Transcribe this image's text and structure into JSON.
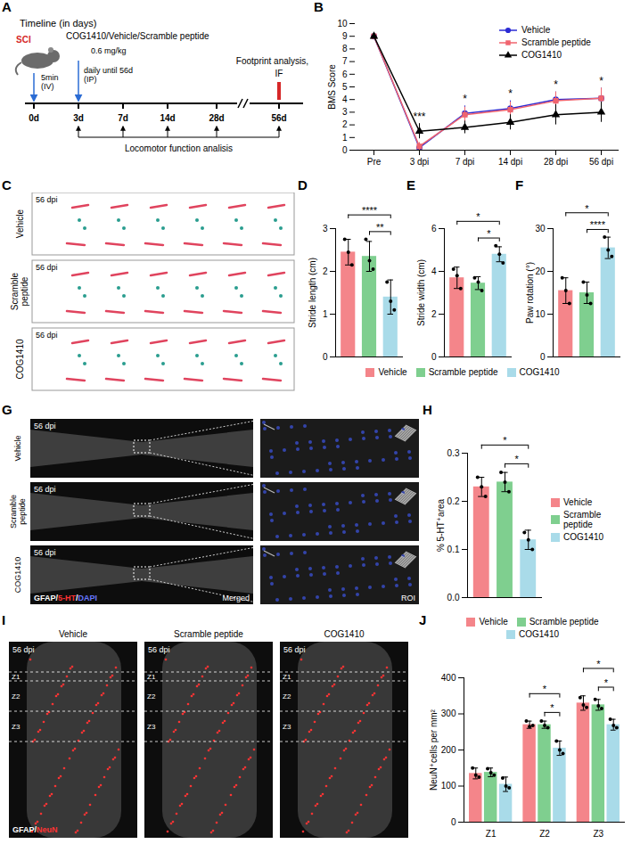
{
  "timeline": {
    "panel": "A",
    "title": "Timeline (in days)",
    "injury": "SCI",
    "treatment": "COG1410/Vehicle/Scramble peptide",
    "dose": "0.6 mg/kg",
    "first_dose": [
      "5min",
      "(IV)"
    ],
    "daily_dose": [
      "daily until 56d",
      "(IP)"
    ],
    "endpoint": [
      "Footprint analysis,",
      "IF"
    ],
    "days": [
      "0d",
      "3d",
      "7d",
      "14d",
      "28d",
      "56d"
    ],
    "assessment": "Locomotor function analisis"
  },
  "footprints": {
    "panel": "C",
    "tag": "56 dpi",
    "rows": [
      "Vehicle",
      "Scramble peptide",
      "COG1410"
    ]
  },
  "serotonin_images": {
    "panel": "G",
    "tag": "56 dpi",
    "rows": [
      "Vehicle",
      "Scramble peptide",
      "COG1410"
    ],
    "stain": "GFAP/5-HT/DAPI",
    "stain_colors": [
      "#ffffff",
      "#ff3333",
      "#6677ff"
    ],
    "columns": [
      "Merged",
      "ROI"
    ]
  },
  "neun_images": {
    "panel": "I",
    "tag": "56 dpi",
    "columns": [
      "Vehicle",
      "Scramble peptide",
      "COG1410"
    ],
    "zones": [
      "Z1",
      "Z2",
      "Z3"
    ],
    "stain": "GFAP/NeuN",
    "stain_colors": [
      "#ffffff",
      "#ff3333"
    ]
  },
  "chart_data": [
    {
      "panel": "B",
      "type": "line",
      "y_label": "BMS Score",
      "categories": [
        "Pre",
        "3 dpi",
        "7 dpi",
        "14 dpi",
        "28 dpi",
        "56 dpi"
      ],
      "series": [
        {
          "name": "Vehicle",
          "color": "#2b2bd4",
          "marker": "circle",
          "line_style": "solid",
          "values": [
            9,
            0.2,
            2.9,
            3.3,
            4.0,
            4.1
          ],
          "errors": [
            0,
            0.3,
            0.6,
            0.6,
            0.6,
            0.8
          ]
        },
        {
          "name": "Scramble peptide",
          "color": "#f0646e",
          "marker": "square",
          "line_style": "solid",
          "values": [
            9,
            0.3,
            2.8,
            3.2,
            3.9,
            4.1
          ],
          "errors": [
            0,
            0.3,
            0.6,
            0.6,
            0.7,
            0.8
          ]
        },
        {
          "name": "COG1410",
          "color": "#000000",
          "marker": "triangle",
          "line_style": "solid",
          "values": [
            9,
            1.5,
            1.8,
            2.2,
            2.8,
            3.0
          ],
          "errors": [
            0,
            0.6,
            0.5,
            0.6,
            0.8,
            0.8
          ]
        }
      ],
      "annotations": [
        {
          "x": "3 dpi",
          "text": "***"
        },
        {
          "x": "7 dpi",
          "text": "*"
        },
        {
          "x": "14 dpi",
          "text": "*"
        },
        {
          "x": "28 dpi",
          "text": "*"
        },
        {
          "x": "56 dpi",
          "text": "*"
        }
      ],
      "ylim": [
        0,
        10
      ],
      "yticks": [
        0,
        1,
        2,
        3,
        4,
        5,
        6,
        7,
        8,
        9,
        10
      ],
      "legend": "top-right"
    },
    {
      "panel": "D",
      "type": "bar",
      "y_label": "Stride length (cm)",
      "categories": [
        "Vehicle",
        "Scramble peptide",
        "COG1410"
      ],
      "colors": [
        "#f4858a",
        "#7fcf8f",
        "#a9dbe9"
      ],
      "values": [
        2.45,
        2.35,
        1.4
      ],
      "errors": [
        0.3,
        0.35,
        0.4
      ],
      "points": [
        [
          2.75,
          2.45,
          2.15
        ],
        [
          2.75,
          2.25,
          2.05
        ],
        [
          1.75,
          1.3,
          1.1
        ]
      ],
      "significance": [
        {
          "from": "Vehicle",
          "to": "COG1410",
          "label": "****"
        },
        {
          "from": "Scramble peptide",
          "to": "COG1410",
          "label": "**"
        }
      ],
      "ylim": [
        0,
        3
      ],
      "yticks": [
        0,
        1,
        2,
        3
      ],
      "tick_labels": "y"
    },
    {
      "panel": "E",
      "type": "bar",
      "y_label": "Stride width (cm)",
      "categories": [
        "Vehicle",
        "Scramble peptide",
        "COG1410"
      ],
      "colors": [
        "#f4858a",
        "#7fcf8f",
        "#a9dbe9"
      ],
      "values": [
        3.7,
        3.45,
        4.8
      ],
      "errors": [
        0.5,
        0.3,
        0.35
      ],
      "points": [
        [
          4.1,
          3.8,
          3.2
        ],
        [
          3.7,
          3.5,
          3.1
        ],
        [
          5.2,
          4.8,
          4.4
        ]
      ],
      "significance": [
        {
          "from": "Scramble peptide",
          "to": "COG1410",
          "label": "*"
        },
        {
          "from": "Vehicle",
          "to": "COG1410",
          "label": "*"
        }
      ],
      "ylim": [
        0,
        6
      ],
      "yticks": [
        0,
        2,
        4,
        6
      ],
      "tick_labels": "y"
    },
    {
      "panel": "F",
      "type": "bar",
      "y_label": "Paw rotation (°)",
      "categories": [
        "Vehicle",
        "Scramble peptide",
        "COG1410"
      ],
      "colors": [
        "#f4858a",
        "#7fcf8f",
        "#a9dbe9"
      ],
      "values": [
        15.5,
        15,
        25.5
      ],
      "errors": [
        3,
        2.5,
        2.5
      ],
      "points": [
        [
          18.5,
          15.5,
          12.5
        ],
        [
          17.5,
          14.5,
          12.5
        ],
        [
          28,
          25,
          23.5
        ]
      ],
      "significance": [
        {
          "from": "Scramble peptide",
          "to": "COG1410",
          "label": "****"
        },
        {
          "from": "Vehicle",
          "to": "COG1410",
          "label": "*"
        }
      ],
      "ylim": [
        0,
        30
      ],
      "yticks": [
        0,
        10,
        20,
        30
      ],
      "tick_labels": "y",
      "legend": "bottom"
    },
    {
      "panel": "H",
      "type": "bar",
      "y_label": "% 5-HT⁺area",
      "categories": [
        "Vehicle",
        "Scramble peptide",
        "COG1410"
      ],
      "colors": [
        "#f4858a",
        "#7fcf8f",
        "#a9dbe9"
      ],
      "values": [
        0.23,
        0.24,
        0.12
      ],
      "errors": [
        0.02,
        0.02,
        0.02
      ],
      "points": [
        [
          0.25,
          0.23,
          0.21
        ],
        [
          0.26,
          0.24,
          0.22
        ],
        [
          0.135,
          0.12,
          0.1
        ]
      ],
      "significance": [
        {
          "from": "Scramble peptide",
          "to": "COG1410",
          "label": "*"
        },
        {
          "from": "Vehicle",
          "to": "COG1410",
          "label": "*"
        }
      ],
      "ylim": [
        0,
        0.3
      ],
      "yticks": [
        {
          "value": 0,
          "label": "0.0"
        },
        {
          "value": 0.1,
          "label": "0.1"
        },
        {
          "value": 0.2,
          "label": "0.2"
        },
        {
          "value": 0.3,
          "label": "0.3"
        }
      ],
      "tick_labels": "y",
      "legend": "right"
    },
    {
      "panel": "J",
      "type": "bar",
      "y_label": "NeuN⁺cells per mm²",
      "categories": [
        "Z1",
        "Z2",
        "Z3"
      ],
      "series": [
        {
          "name": "Vehicle",
          "color": "#f4858a",
          "values": [
            135,
            270,
            330
          ],
          "errors": [
            15,
            10,
            20
          ],
          "points": [
            [
              150,
              130,
              125
            ],
            [
              280,
              265,
              268
            ],
            [
              345,
              325,
              318
            ]
          ]
        },
        {
          "name": "Scramble peptide",
          "color": "#7fcf8f",
          "values": [
            138,
            270,
            325
          ],
          "errors": [
            12,
            10,
            15
          ],
          "points": [
            [
              148,
              137,
              130
            ],
            [
              280,
              268,
              262
            ],
            [
              340,
              322,
              315
            ]
          ]
        },
        {
          "name": "COG1410",
          "color": "#a9dbe9",
          "values": [
            105,
            205,
            270
          ],
          "errors": [
            20,
            20,
            15
          ],
          "points": [
            [
              122,
              100,
              95
            ],
            [
              225,
              200,
              190
            ],
            [
              285,
              268,
              262
            ]
          ]
        }
      ],
      "significance": [
        {
          "category": "Z2",
          "from": "Scramble peptide",
          "to": "COG1410",
          "label": "*"
        },
        {
          "category": "Z2",
          "from": "Vehicle",
          "to": "COG1410",
          "label": "*"
        },
        {
          "category": "Z3",
          "from": "Scramble peptide",
          "to": "COG1410",
          "label": "*"
        },
        {
          "category": "Z3",
          "from": "Vehicle",
          "to": "COG1410",
          "label": "*"
        }
      ],
      "ylim": [
        0,
        400
      ],
      "yticks": [
        0,
        100,
        200,
        300,
        400
      ],
      "legend": "top"
    }
  ]
}
